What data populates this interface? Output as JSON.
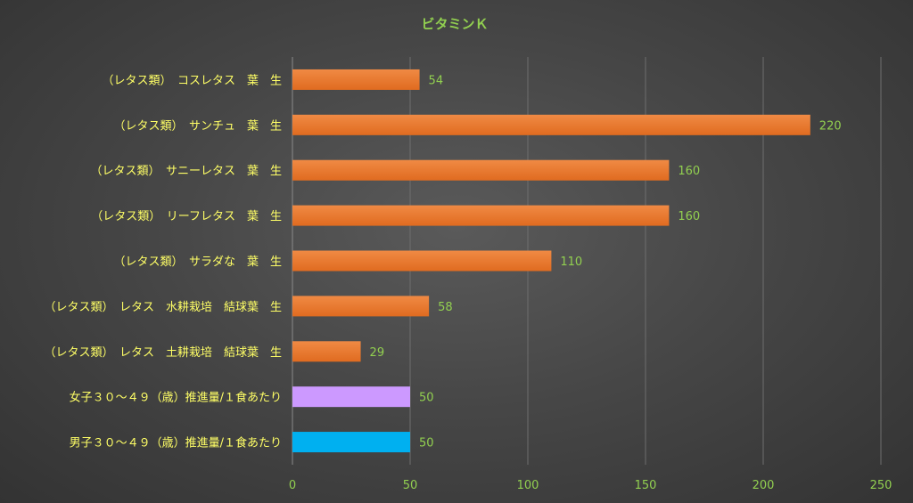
{
  "chart_data": {
    "type": "bar",
    "orientation": "horizontal",
    "title": "ビタミンＫ",
    "categories": [
      "（レタス類）　コスレタス　葉　生",
      "（レタス類）　サンチュ　葉　生",
      "（レタス類）　サニーレタス　葉　生",
      "（レタス類）　リーフレタス　葉　生",
      "（レタス類）　サラダな　葉　生",
      "（レタス類）　レタス　水耕栽培　結球葉　生",
      "（レタス類）　レタス　土耕栽培　結球葉　生",
      "女子３０～４９（歳）推進量/１食あたり",
      "男子３０～４９（歳）推進量/１食あたり"
    ],
    "values": [
      54,
      220,
      160,
      160,
      110,
      58,
      29,
      50,
      50
    ],
    "bar_colors": [
      "#ed7d31",
      "#ed7d31",
      "#ed7d31",
      "#ed7d31",
      "#ed7d31",
      "#ed7d31",
      "#ed7d31",
      "#cc99ff",
      "#00b0f0"
    ],
    "xlim": [
      0,
      250
    ],
    "x_ticks": [
      0,
      50,
      100,
      150,
      200,
      250
    ],
    "grid": true,
    "data_labels": true,
    "legend": "none"
  }
}
